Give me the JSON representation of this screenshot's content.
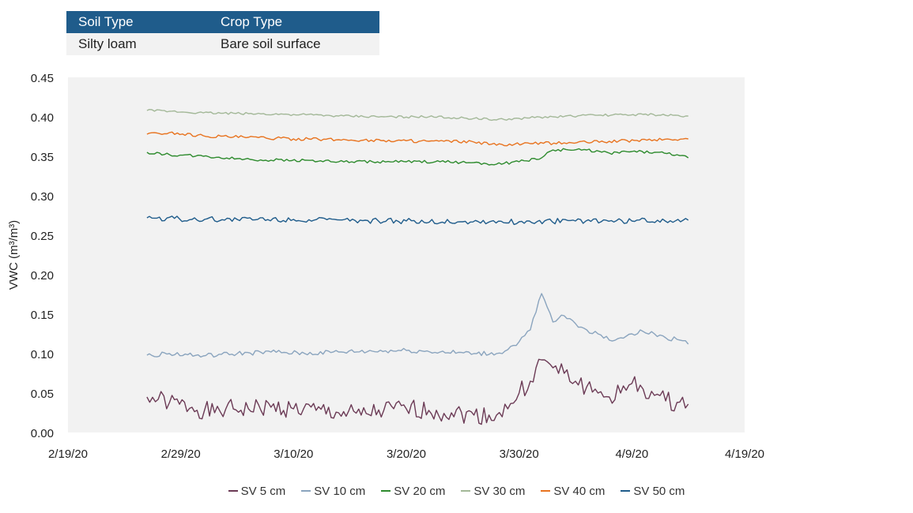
{
  "info_table": {
    "headers": [
      "Soil Type",
      "Crop Type"
    ],
    "row": [
      "Silty loam",
      "Bare soil surface"
    ]
  },
  "chart_data": {
    "type": "line",
    "title": "",
    "xlabel": "",
    "ylabel": "VWC (m³/m³)",
    "x_ticks": [
      "2/19/20",
      "2/29/20",
      "3/10/20",
      "3/20/20",
      "3/30/20",
      "4/9/20",
      "4/19/20"
    ],
    "y_ticks": [
      "0.00",
      "0.05",
      "0.10",
      "0.15",
      "0.20",
      "0.25",
      "0.30",
      "0.35",
      "0.40",
      "0.45"
    ],
    "xlim": [
      "2020-02-19",
      "2020-04-19"
    ],
    "ylim": [
      0,
      0.45
    ],
    "grid": false,
    "legend_position": "bottom",
    "plot_background": "#f2f2f2",
    "series": [
      {
        "name": "SV 5 cm",
        "color": "#6b3a55",
        "points": [
          [
            "2020-02-26",
            0.045
          ],
          [
            "2020-02-27",
            0.042
          ],
          [
            "2020-02-28",
            0.038
          ],
          [
            "2020-03-01",
            0.032
          ],
          [
            "2020-03-03",
            0.025
          ],
          [
            "2020-03-04",
            0.03
          ],
          [
            "2020-03-06",
            0.03
          ],
          [
            "2020-03-08",
            0.032
          ],
          [
            "2020-03-10",
            0.03
          ],
          [
            "2020-03-12",
            0.028
          ],
          [
            "2020-03-14",
            0.025
          ],
          [
            "2020-03-16",
            0.022
          ],
          [
            "2020-03-18",
            0.028
          ],
          [
            "2020-03-20",
            0.03
          ],
          [
            "2020-03-22",
            0.028
          ],
          [
            "2020-03-24",
            0.025
          ],
          [
            "2020-03-26",
            0.022
          ],
          [
            "2020-03-28",
            0.022
          ],
          [
            "2020-03-29",
            0.03
          ],
          [
            "2020-03-30",
            0.05
          ],
          [
            "2020-03-31",
            0.065
          ],
          [
            "2020-04-01",
            0.092
          ],
          [
            "2020-04-02",
            0.082
          ],
          [
            "2020-04-03",
            0.075
          ],
          [
            "2020-04-04",
            0.065
          ],
          [
            "2020-04-05",
            0.058
          ],
          [
            "2020-04-06",
            0.05
          ],
          [
            "2020-04-07",
            0.045
          ],
          [
            "2020-04-08",
            0.05
          ],
          [
            "2020-04-09",
            0.062
          ],
          [
            "2020-04-10",
            0.055
          ],
          [
            "2020-04-11",
            0.047
          ],
          [
            "2020-04-12",
            0.04
          ],
          [
            "2020-04-13",
            0.038
          ],
          [
            "2020-04-14",
            0.036
          ]
        ]
      },
      {
        "name": "SV 10 cm",
        "color": "#8aa4be",
        "points": [
          [
            "2020-02-26",
            0.098
          ],
          [
            "2020-02-28",
            0.1
          ],
          [
            "2020-03-02",
            0.097
          ],
          [
            "2020-03-05",
            0.1
          ],
          [
            "2020-03-08",
            0.102
          ],
          [
            "2020-03-11",
            0.1
          ],
          [
            "2020-03-14",
            0.102
          ],
          [
            "2020-03-17",
            0.103
          ],
          [
            "2020-03-20",
            0.104
          ],
          [
            "2020-03-23",
            0.102
          ],
          [
            "2020-03-26",
            0.1
          ],
          [
            "2020-03-28",
            0.1
          ],
          [
            "2020-03-29",
            0.105
          ],
          [
            "2020-03-30",
            0.115
          ],
          [
            "2020-03-31",
            0.13
          ],
          [
            "2020-04-01",
            0.176
          ],
          [
            "2020-04-02",
            0.14
          ],
          [
            "2020-04-03",
            0.148
          ],
          [
            "2020-04-04",
            0.138
          ],
          [
            "2020-04-05",
            0.13
          ],
          [
            "2020-04-06",
            0.125
          ],
          [
            "2020-04-07",
            0.117
          ],
          [
            "2020-04-08",
            0.12
          ],
          [
            "2020-04-09",
            0.125
          ],
          [
            "2020-04-10",
            0.128
          ],
          [
            "2020-04-11",
            0.125
          ],
          [
            "2020-04-12",
            0.12
          ],
          [
            "2020-04-13",
            0.118
          ],
          [
            "2020-04-14",
            0.112
          ]
        ]
      },
      {
        "name": "SV 20 cm",
        "color": "#2e8b2e",
        "points": [
          [
            "2020-02-26",
            0.355
          ],
          [
            "2020-02-28",
            0.352
          ],
          [
            "2020-03-02",
            0.35
          ],
          [
            "2020-03-05",
            0.347
          ],
          [
            "2020-03-08",
            0.345
          ],
          [
            "2020-03-11",
            0.345
          ],
          [
            "2020-03-14",
            0.343
          ],
          [
            "2020-03-17",
            0.343
          ],
          [
            "2020-03-20",
            0.343
          ],
          [
            "2020-03-23",
            0.343
          ],
          [
            "2020-03-26",
            0.342
          ],
          [
            "2020-03-28",
            0.34
          ],
          [
            "2020-03-30",
            0.343
          ],
          [
            "2020-04-01",
            0.348
          ],
          [
            "2020-04-02",
            0.358
          ],
          [
            "2020-04-05",
            0.358
          ],
          [
            "2020-04-07",
            0.354
          ],
          [
            "2020-04-09",
            0.356
          ],
          [
            "2020-04-11",
            0.355
          ],
          [
            "2020-04-13",
            0.352
          ],
          [
            "2020-04-14",
            0.348
          ]
        ]
      },
      {
        "name": "SV 30 cm",
        "color": "#a3b898",
        "points": [
          [
            "2020-02-26",
            0.408
          ],
          [
            "2020-02-28",
            0.407
          ],
          [
            "2020-03-02",
            0.405
          ],
          [
            "2020-03-06",
            0.404
          ],
          [
            "2020-03-10",
            0.403
          ],
          [
            "2020-03-14",
            0.401
          ],
          [
            "2020-03-18",
            0.4
          ],
          [
            "2020-03-22",
            0.4
          ],
          [
            "2020-03-26",
            0.398
          ],
          [
            "2020-03-28",
            0.396
          ],
          [
            "2020-03-30",
            0.398
          ],
          [
            "2020-04-02",
            0.4
          ],
          [
            "2020-04-06",
            0.402
          ],
          [
            "2020-04-10",
            0.403
          ],
          [
            "2020-04-14",
            0.401
          ]
        ]
      },
      {
        "name": "SV 40 cm",
        "color": "#e8731f",
        "points": [
          [
            "2020-02-26",
            0.378
          ],
          [
            "2020-02-28",
            0.38
          ],
          [
            "2020-03-02",
            0.376
          ],
          [
            "2020-03-06",
            0.374
          ],
          [
            "2020-03-10",
            0.372
          ],
          [
            "2020-03-14",
            0.371
          ],
          [
            "2020-03-18",
            0.37
          ],
          [
            "2020-03-22",
            0.369
          ],
          [
            "2020-03-26",
            0.368
          ],
          [
            "2020-03-28",
            0.364
          ],
          [
            "2020-03-31",
            0.366
          ],
          [
            "2020-04-03",
            0.367
          ],
          [
            "2020-04-07",
            0.369
          ],
          [
            "2020-04-11",
            0.371
          ],
          [
            "2020-04-14",
            0.372
          ]
        ]
      },
      {
        "name": "SV 50 cm",
        "color": "#1f5c8b",
        "points": [
          [
            "2020-02-26",
            0.272
          ],
          [
            "2020-03-01",
            0.27
          ],
          [
            "2020-03-05",
            0.27
          ],
          [
            "2020-03-10",
            0.27
          ],
          [
            "2020-03-15",
            0.268
          ],
          [
            "2020-03-20",
            0.268
          ],
          [
            "2020-03-25",
            0.267
          ],
          [
            "2020-03-30",
            0.267
          ],
          [
            "2020-04-04",
            0.268
          ],
          [
            "2020-04-09",
            0.268
          ],
          [
            "2020-04-14",
            0.269
          ]
        ]
      }
    ]
  }
}
